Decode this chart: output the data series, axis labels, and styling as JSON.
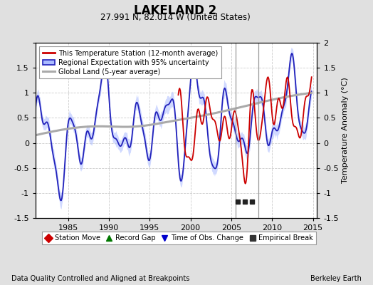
{
  "title": "LAKELAND 2",
  "subtitle": "27.991 N, 82.014 W (United States)",
  "xlabel_left": "Data Quality Controlled and Aligned at Breakpoints",
  "xlabel_right": "Berkeley Earth",
  "ylabel": "Temperature Anomaly (°C)",
  "xlim": [
    1981.0,
    2015.5
  ],
  "ylim": [
    -1.5,
    2.0
  ],
  "yticks": [
    -1.5,
    -1.0,
    -0.5,
    0.0,
    0.5,
    1.0,
    1.5,
    2.0
  ],
  "xticks": [
    1985,
    1990,
    1995,
    2000,
    2005,
    2010,
    2015
  ],
  "vertical_lines": [
    2005.5,
    2008.3
  ],
  "empirical_breaks": [
    2005.8,
    2006.7,
    2007.5
  ],
  "empirical_break_y": -1.17,
  "red_start_year": 1998.5,
  "blue_start_year": 1981.0,
  "bg_color": "#e0e0e0",
  "plot_bg_color": "#ffffff",
  "grid_color": "#cccccc",
  "red_color": "#cc0000",
  "blue_color": "#2222bb",
  "blue_band_color": "#aabbff",
  "gray_color": "#aaaaaa",
  "vline_color": "#999999",
  "legend_labels": [
    "This Temperature Station (12-month average)",
    "Regional Expectation with 95% uncertainty",
    "Global Land (5-year average)"
  ],
  "bottom_legend": [
    {
      "label": "Station Move",
      "color": "#cc0000",
      "marker": "D"
    },
    {
      "label": "Record Gap",
      "color": "#007700",
      "marker": "^"
    },
    {
      "label": "Time of Obs. Change",
      "color": "#0000cc",
      "marker": "v"
    },
    {
      "label": "Empirical Break",
      "color": "#333333",
      "marker": "s"
    }
  ]
}
